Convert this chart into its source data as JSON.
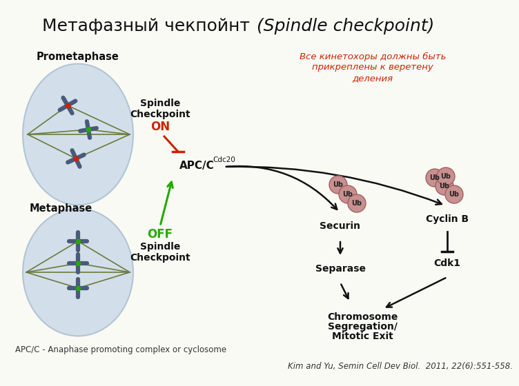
{
  "title_normal": "Метафазный чекпойнт ",
  "title_italic": "(Spindle checkpoint)",
  "title_fontsize": 18,
  "bg_color": "#fafaf5",
  "red_text_line1": "Все кинетохоры должны быть",
  "red_text_line2": "прикреплены к веретену",
  "red_text_line3": "деления",
  "bottom_note": "APC/C - Anaphase promoting complex or cyclosome",
  "citation": "Kim and Yu, Semin Cell Dev Biol.  2011, 22(6):551-558.",
  "prometaphase_label": "Prometaphase",
  "metaphase_label": "Metaphase",
  "spindle_on_line1": "Spindle",
  "spindle_on_line2": "Checkpoint",
  "on_text": "ON",
  "off_text": "OFF",
  "spindle_off_line1": "Spindle",
  "spindle_off_line2": "Checkpoint",
  "apc_main": "APC/C",
  "apc_super": "Cdc20",
  "securin_text": "Securin",
  "cyclinb_text": "Cyclin B",
  "separase_text": "Separase",
  "cdk1_text": "Cdk1",
  "chrom_seg_line1": "Chromosome",
  "chrom_seg_line2": "Segregation/",
  "chrom_seg_line3": "Mitotic Exit",
  "ub_text": "Ub",
  "cell_color": "#ccd9e8",
  "cell_edge_color": "#a8bfd0",
  "chrom_color": "#4a5a7a",
  "spindle_color": "#6b7a3a",
  "ub_color": "#c89090",
  "ub_edge_color": "#a06060",
  "red_color": "#cc2200",
  "green_color": "#22aa00",
  "black_color": "#111111",
  "note_color": "#333333"
}
